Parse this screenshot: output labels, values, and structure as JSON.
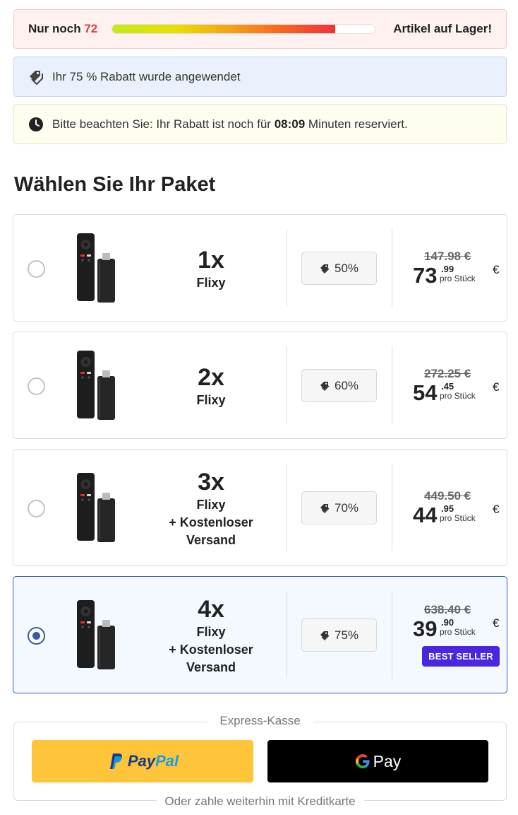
{
  "stock": {
    "prefix": "Nur noch",
    "count": "72",
    "suffix": "Artikel auf Lager!",
    "level": 0.85
  },
  "discount_notice": {
    "icon": "tags-icon",
    "text": "Ihr 75 % Rabatt wurde angewendet"
  },
  "reservation": {
    "icon": "clock-icon",
    "before": "Bitte beachten Sie: Ihr Rabatt ist noch für",
    "time": "08:09",
    "after": "Minuten reserviert."
  },
  "section_title": "Wählen Sie Ihr Paket",
  "packages": [
    {
      "qty": "1x",
      "lines": [
        "Flixy"
      ],
      "discount": "50%",
      "old_price": "147.98 €",
      "price_int": "73",
      "price_dec": ".99",
      "per": "pro Stück",
      "currency": "€",
      "selected": false
    },
    {
      "qty": "2x",
      "lines": [
        "Flixy"
      ],
      "discount": "60%",
      "old_price": "272.25 €",
      "price_int": "54",
      "price_dec": ".45",
      "per": "pro Stück",
      "currency": "€",
      "selected": false
    },
    {
      "qty": "3x",
      "lines": [
        "Flixy",
        "+ Kostenloser",
        "Versand"
      ],
      "discount": "70%",
      "old_price": "449.50 €",
      "price_int": "44",
      "price_dec": ".95",
      "per": "pro Stück",
      "currency": "€",
      "selected": false
    },
    {
      "qty": "4x",
      "lines": [
        "Flixy",
        "+ Kostenloser",
        "Versand"
      ],
      "discount": "75%",
      "old_price": "638.40 €",
      "price_int": "39",
      "price_dec": ".90",
      "per": "pro Stück",
      "currency": "€",
      "selected": true,
      "badge": "BEST SELLER"
    }
  ],
  "express": {
    "legend": "Express-Kasse",
    "paypal_label_1": "Pay",
    "paypal_label_2": "Pal",
    "gpay_label": "Pay",
    "footer": "Oder zahle weiterhin mit Kreditkarte"
  },
  "colors": {
    "selected_border": "#2f5ea8",
    "badge_bg": "#4a27df",
    "paypal_bg": "#fec43a",
    "stock_count": "#e53935"
  }
}
